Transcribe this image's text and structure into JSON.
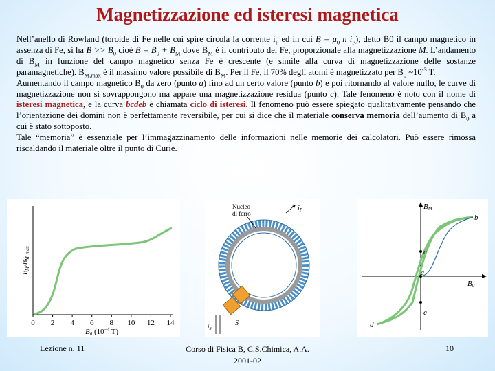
{
  "title": "Magnetizzazione ed isteresi magnetica",
  "paragraph1": {
    "a": "Nell’anello di Rowland (toroide di Fe nelle cui spire circola la corrente i",
    "a_sub": "P",
    "b": " ed in cui ",
    "c": "B = μ",
    "c_sub": "0",
    "d": " n i",
    "d_sub": "P",
    "e": "), detto B0 il campo magnetico in assenza di Fe, si ha ",
    "f": "B >> B",
    "f_sub": "0",
    "g": " cioè ",
    "h": "B = B",
    "h_sub": "0",
    "i": " + B",
    "i_sub": "M",
    "j": " dove B",
    "j_sub": "M",
    "k": " è il contributo del Fe, proporzionale alla magnetizzazione ",
    "l": "M",
    "m": ". L’andamento di B",
    "m_sub": "M",
    "n": " in funzione del campo magnetico senza Fe è crescente (e simile alla curva di magnetizzazione delle sostanze paramagnetiche). B",
    "n_sub": "M,max",
    "o": " è il massimo valore possibile di B",
    "o_sub": "M",
    "p": ". Per il Fe, il 70% degli atomi è magnetizzato per B",
    "p_sub": "0",
    "q": " ~10",
    "q_sup": "-3",
    "r": " T."
  },
  "paragraph2": {
    "a": "Aumentando il campo magnetico B",
    "a_sub": "0",
    "b": " da zero (punto ",
    "c": "a",
    "d": ") fino ad un certo valore (punto ",
    "e": "b",
    "f": ") e poi ritornando al valore nullo, le curve di magnetizzazione non si sovrappongono ma appare una magnetizzazione residua (punto ",
    "g": "c",
    "h": "). Tale fenomeno è noto con il nome di ",
    "i": "isteresi magnetica",
    "j": ", e la curva ",
    "k": "bcdeb",
    "l": " è chiamata ",
    "m": "ciclo di isteresi",
    "n": ". Il fenomeno può essere spiegato qualitativamente pensando che l’orientazione dei domini non è perfettamente reversibile, per cui si dice che il materiale ",
    "o": "conserva memoria",
    "p": " dell’aumento di B",
    "p_sub": "0",
    "q": " a cui è stato sottoposto."
  },
  "paragraph3": "Tale “memoria” è essenziale per l’immagazzinamento delle informazioni nelle memorie dei calcolatori. Può essere rimossa riscaldando il materiale oltre il punto di Curie.",
  "figure_left": {
    "ylabel": "B_M/B_M,max",
    "xlabel": "B_0 (10^-4 T)",
    "x_ticks": [
      "0",
      "2",
      "4",
      "6",
      "8",
      "10",
      "12",
      "14"
    ],
    "curve_color": "#7cc576"
  },
  "figure_mid": {
    "core_label_1": "Nucleo",
    "core_label_2": "di ferro",
    "label_ip": "i_P",
    "label_S": "S",
    "label_is": "i_S"
  },
  "figure_right": {
    "axis_y": "B_M",
    "axis_x": "B_0",
    "points": [
      "b",
      "c",
      "a",
      "e",
      "d"
    ],
    "loop_color": "#7cc576"
  },
  "footer": {
    "left": "Lezione n. 11",
    "center_1": "Corso di Fisica B, C.S.Chimica, A.A.",
    "center_2": "2001-02",
    "right": "10"
  }
}
